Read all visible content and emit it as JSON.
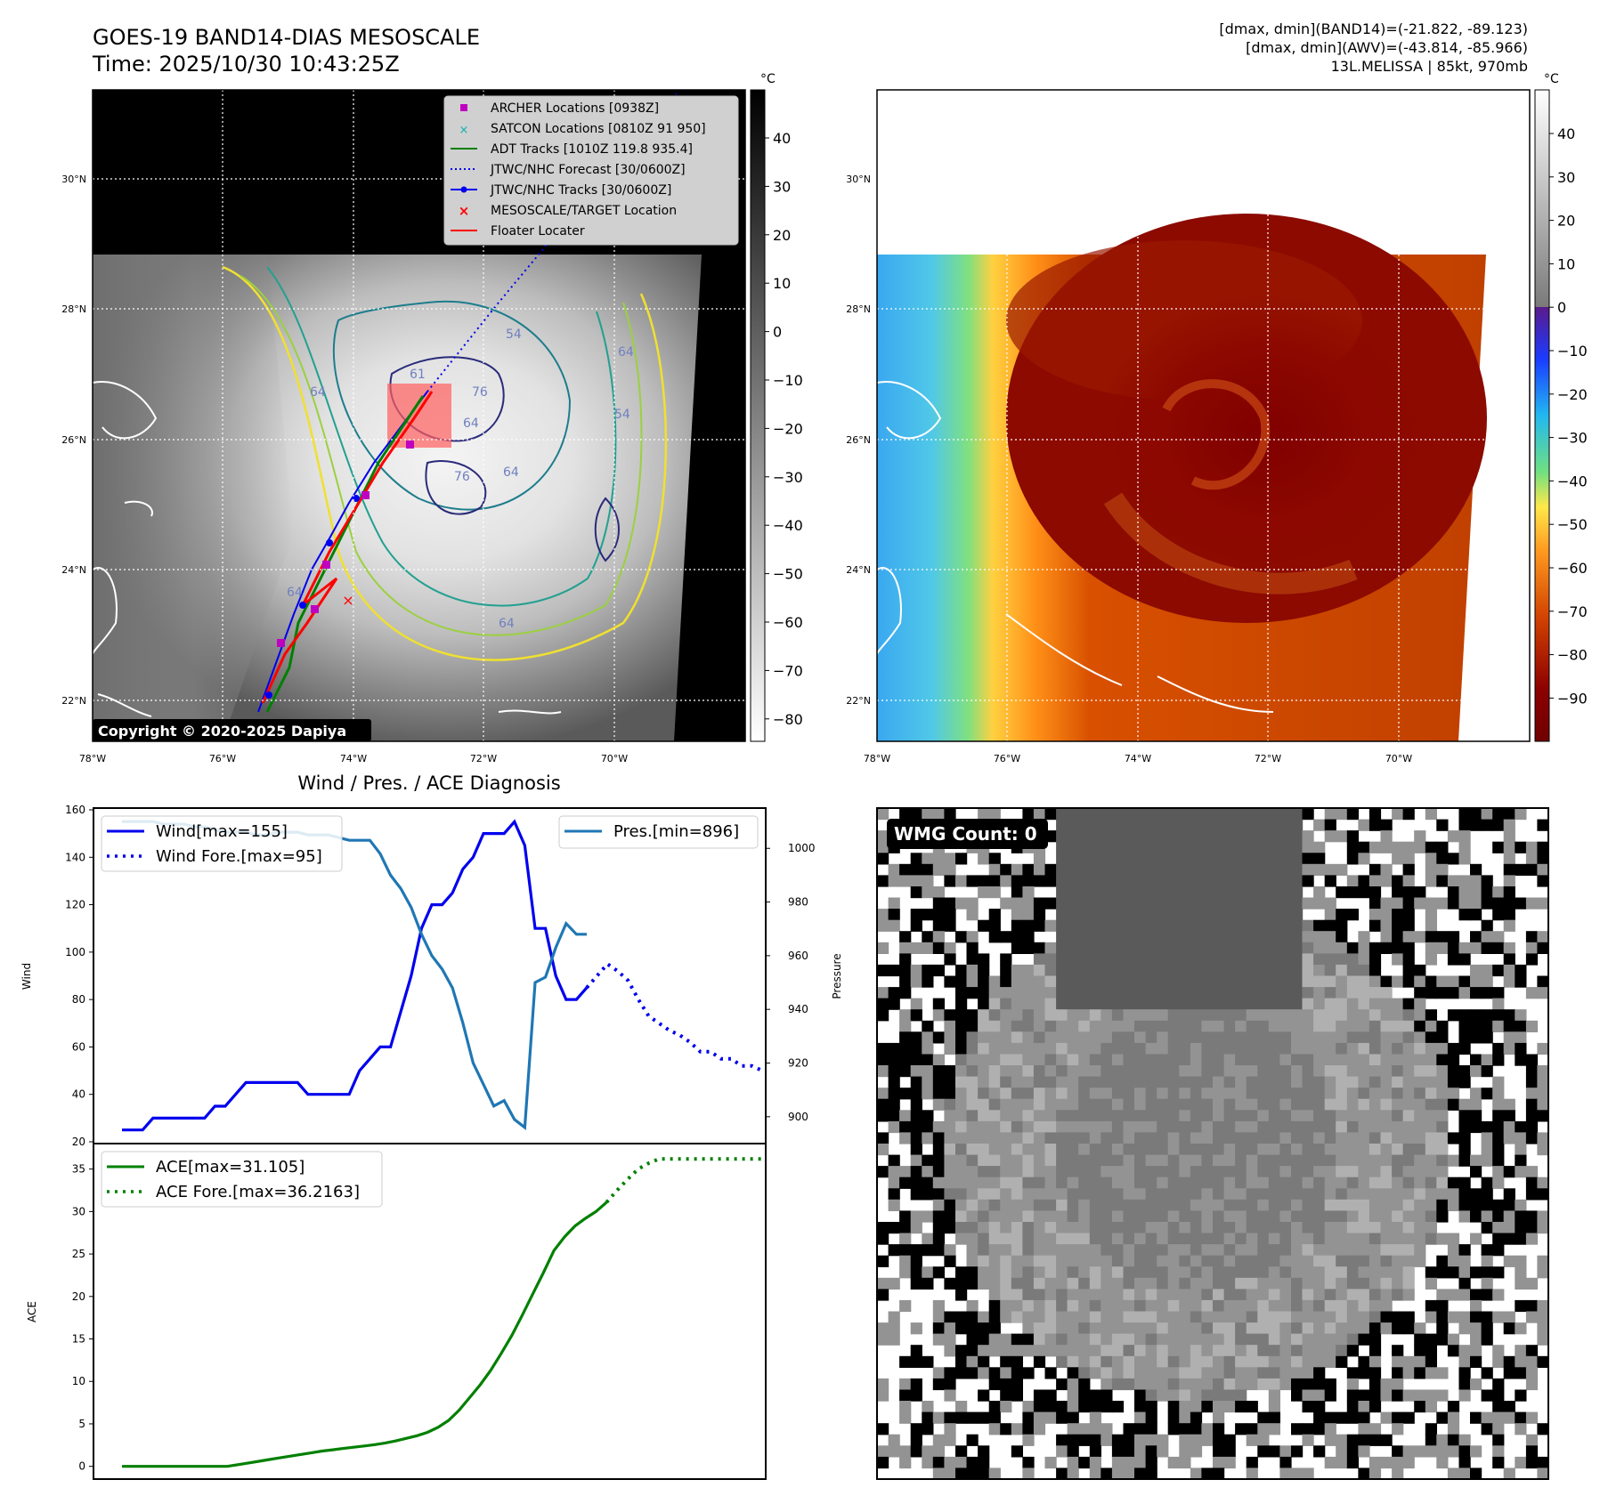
{
  "header": {
    "title_line1": "GOES-19 BAND14-DIAS MESOSCALE",
    "title_line2": "Time: 2025/10/30 10:43:25Z",
    "stats_line1": "[dmax, dmin](BAND14)=(-21.822, -89.123)",
    "stats_line2": "[dmax, dmin](AWV)=(-43.814, -85.966)",
    "stats_line3": "13L.MELISSA | 85kt, 970mb",
    "copyright": "Copyright © 2020-2025 Dapiya"
  },
  "map_axes": {
    "lon_labels": [
      "78°W",
      "76°W",
      "74°W",
      "72°W",
      "70°W"
    ],
    "lat_labels": [
      "30°N",
      "28°N",
      "26°N",
      "24°N",
      "22°N"
    ]
  },
  "colorbar_left": {
    "unit": "°C",
    "ticks": [
      "40",
      "30",
      "20",
      "10",
      "0",
      "−10",
      "−20",
      "−30",
      "−40",
      "−50",
      "−60",
      "−70",
      "−80"
    ]
  },
  "colorbar_right": {
    "unit": "°C",
    "ticks": [
      "40",
      "30",
      "20",
      "10",
      "0",
      "−10",
      "−20",
      "−30",
      "−40",
      "−50",
      "−60",
      "−70",
      "−80",
      "−90"
    ]
  },
  "legend": {
    "items": [
      {
        "label": "ARCHER Locations [0938Z]",
        "color": "#c000c0"
      },
      {
        "label": "SATCON Locations [0810Z 91 950]",
        "color": "#10b0b0"
      },
      {
        "label": "ADT Tracks [1010Z 119.8 935.4]",
        "color": "#008000"
      },
      {
        "label": "JTWC/NHC Forecast [30/0600Z]",
        "color": "#0000ff"
      },
      {
        "label": "JTWC/NHC Tracks [30/0600Z]",
        "color": "#0000ff"
      },
      {
        "label": "MESOSCALE/TARGET Location",
        "color": "#ff0000"
      },
      {
        "label": "Floater Locater",
        "color": "#ff0000"
      }
    ]
  },
  "contour_labels": [
    "64",
    "54",
    "61",
    "76",
    "64",
    "64",
    "76",
    "64",
    "64",
    "54",
    "64"
  ],
  "chart_data": [
    {
      "type": "line",
      "title": "Wind / Pres. / ACE Diagnosis",
      "ylabel": "Wind",
      "ylabel_right": "Pressure",
      "ylim": [
        20,
        160
      ],
      "ylim_right": [
        890,
        1015
      ],
      "y_ticks": [
        "160",
        "140",
        "120",
        "100",
        "80",
        "60",
        "40",
        "20"
      ],
      "y_ticks_right": [
        "1000",
        "980",
        "960",
        "940",
        "920",
        "900"
      ],
      "series": [
        {
          "name": "Wind[max=155]",
          "color": "#0000ee",
          "style": "solid",
          "values": [
            25,
            25,
            25,
            30,
            30,
            30,
            30,
            30,
            30,
            35,
            35,
            40,
            45,
            45,
            45,
            45,
            45,
            45,
            40,
            40,
            40,
            40,
            40,
            50,
            55,
            60,
            60,
            75,
            90,
            110,
            120,
            120,
            125,
            135,
            140,
            150,
            150,
            150,
            155,
            145,
            110,
            110,
            90,
            80,
            80,
            85
          ]
        },
        {
          "name": "Wind Fore.[max=95]",
          "color": "#0000ee",
          "style": "dotted",
          "start": 45,
          "values": [
            85,
            90,
            95,
            92,
            88,
            80,
            73,
            70,
            67,
            65,
            62,
            58,
            58,
            55,
            55,
            52,
            52,
            50
          ]
        },
        {
          "name": "Pres.[min=896]",
          "color": "#1f77b4",
          "style": "solid",
          "values": [
            1010,
            1010,
            1010,
            1010,
            1009,
            1009,
            1009,
            1008,
            1008,
            1007,
            1006,
            1006,
            1006,
            1005,
            1005,
            1006,
            1006,
            1006,
            1005,
            1005,
            1005,
            1004,
            1003,
            1003,
            1003,
            998,
            990,
            985,
            978,
            968,
            960,
            955,
            948,
            935,
            920,
            912,
            904,
            906,
            899,
            896,
            950,
            952,
            963,
            972,
            968,
            968
          ]
        }
      ]
    },
    {
      "type": "line",
      "ylabel": "ACE",
      "ylim": [
        -1.5,
        38
      ],
      "y_ticks": [
        "35",
        "30",
        "25",
        "20",
        "15",
        "10",
        "5",
        "0"
      ],
      "series": [
        {
          "name": "ACE[max=31.105]",
          "color": "#008000",
          "style": "solid",
          "values": [
            0,
            0,
            0,
            0,
            0,
            0,
            0,
            0,
            0,
            0,
            0,
            0.2,
            0.4,
            0.6,
            0.8,
            1.0,
            1.2,
            1.4,
            1.6,
            1.8,
            1.95,
            2.1,
            2.25,
            2.4,
            2.55,
            2.75,
            3.0,
            3.3,
            3.6,
            4.0,
            4.6,
            5.4,
            6.6,
            8.1,
            9.6,
            11.3,
            13.3,
            15.4,
            17.8,
            20.3,
            22.8,
            25.4,
            27.0,
            28.3,
            29.2,
            30.0,
            31.1
          ]
        },
        {
          "name": "ACE Fore.[max=36.2163]",
          "color": "#008000",
          "style": "dotted",
          "start": 46,
          "values": [
            31.1,
            32.5,
            33.8,
            35.0,
            35.7,
            36.2,
            36.2,
            36.2,
            36.2,
            36.2,
            36.2,
            36.2,
            36.2,
            36.2,
            36.2,
            36.2,
            36.2,
            36.2
          ]
        }
      ]
    }
  ],
  "wmg": {
    "badge": "WMG Count: 0"
  }
}
